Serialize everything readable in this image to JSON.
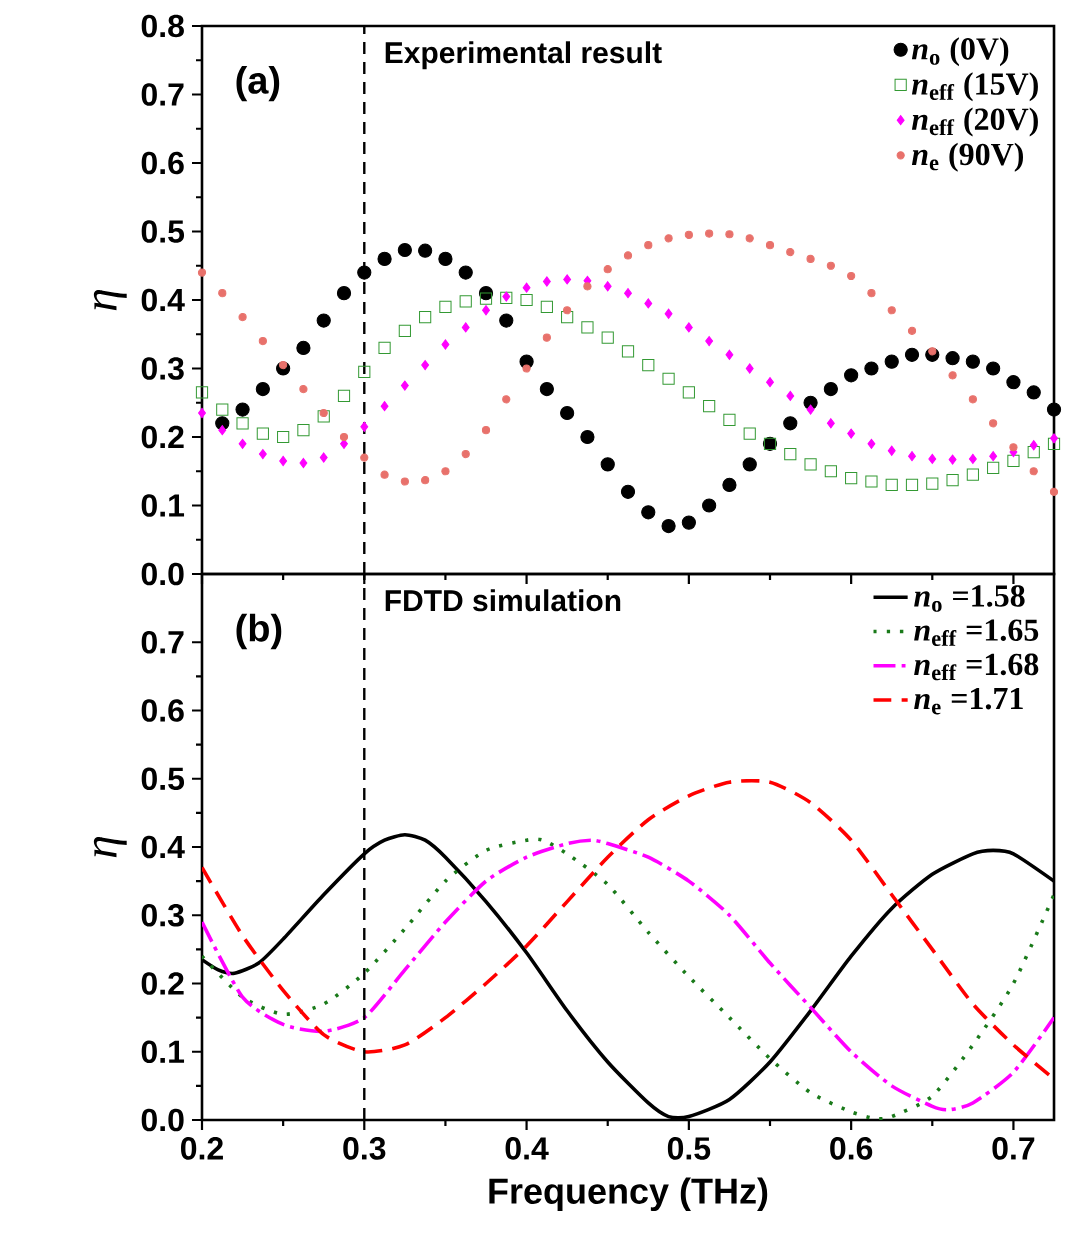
{
  "chart_data": [
    {
      "type": "scatter",
      "ylabel": "η",
      "annotations": [
        "(a)",
        "Experimental result"
      ],
      "xlim": [
        0.2,
        0.725
      ],
      "ylim": [
        0,
        0.8
      ],
      "xticks": [
        0.2,
        0.3,
        0.4,
        0.5,
        0.6,
        0.7
      ],
      "yticks": [
        {
          "value": 0,
          "label": "0.0"
        },
        0.1,
        0.2,
        0.3,
        0.4,
        0.5,
        0.6,
        0.7,
        0.8
      ],
      "tick_labels": "y",
      "legend": "top right",
      "ref_lines": [
        {
          "axis": "x",
          "value": 0.3,
          "color": "#000000",
          "line_style": "dashed"
        }
      ],
      "series": [
        {
          "name": "*n*$_{o}$ (0V)",
          "color": "#000000",
          "marker": "circle",
          "x": [
            0.2125,
            0.225,
            0.2375,
            0.25,
            0.2625,
            0.275,
            0.2875,
            0.3,
            0.3125,
            0.325,
            0.3375,
            0.35,
            0.3625,
            0.375,
            0.3875,
            0.4,
            0.4125,
            0.425,
            0.4375,
            0.45,
            0.4625,
            0.475,
            0.4875,
            0.5,
            0.5125,
            0.525,
            0.5375,
            0.55,
            0.5625,
            0.575,
            0.5875,
            0.6,
            0.6125,
            0.625,
            0.6375,
            0.65,
            0.6625,
            0.675,
            0.6875,
            0.7,
            0.7125,
            0.725
          ],
          "values": [
            0.22,
            0.24,
            0.27,
            0.3,
            0.33,
            0.37,
            0.41,
            0.44,
            0.46,
            0.473,
            0.472,
            0.46,
            0.44,
            0.41,
            0.37,
            0.31,
            0.27,
            0.235,
            0.2,
            0.16,
            0.12,
            0.09,
            0.07,
            0.075,
            0.1,
            0.13,
            0.16,
            0.19,
            0.22,
            0.25,
            0.27,
            0.29,
            0.3,
            0.31,
            0.32,
            0.32,
            0.315,
            0.31,
            0.3,
            0.28,
            0.265,
            0.24
          ]
        },
        {
          "name": "*n*$_{eff}$ (15V)",
          "color": "#339933",
          "marker": "square",
          "x": [
            0.2,
            0.2125,
            0.225,
            0.2375,
            0.25,
            0.2625,
            0.275,
            0.2875,
            0.3,
            0.3125,
            0.325,
            0.3375,
            0.35,
            0.3625,
            0.375,
            0.3875,
            0.4,
            0.4125,
            0.425,
            0.4375,
            0.45,
            0.4625,
            0.475,
            0.4875,
            0.5,
            0.5125,
            0.525,
            0.5375,
            0.55,
            0.5625,
            0.575,
            0.5875,
            0.6,
            0.6125,
            0.625,
            0.6375,
            0.65,
            0.6625,
            0.675,
            0.6875,
            0.7,
            0.7125,
            0.725
          ],
          "values": [
            0.265,
            0.24,
            0.22,
            0.205,
            0.2,
            0.21,
            0.23,
            0.26,
            0.295,
            0.33,
            0.355,
            0.375,
            0.39,
            0.398,
            0.402,
            0.403,
            0.4,
            0.39,
            0.375,
            0.36,
            0.345,
            0.325,
            0.305,
            0.285,
            0.265,
            0.245,
            0.225,
            0.205,
            0.19,
            0.175,
            0.16,
            0.15,
            0.14,
            0.135,
            0.13,
            0.13,
            0.132,
            0.137,
            0.145,
            0.155,
            0.165,
            0.178,
            0.19
          ]
        },
        {
          "name": "*n*$_{eff}$ (20V)",
          "color": "#ff00ff",
          "marker": "diamond",
          "x": [
            0.2,
            0.2125,
            0.225,
            0.2375,
            0.25,
            0.2625,
            0.275,
            0.2875,
            0.3,
            0.3125,
            0.325,
            0.3375,
            0.35,
            0.3625,
            0.375,
            0.3875,
            0.4,
            0.4125,
            0.425,
            0.4375,
            0.45,
            0.4625,
            0.475,
            0.4875,
            0.5,
            0.5125,
            0.525,
            0.5375,
            0.55,
            0.5625,
            0.575,
            0.5875,
            0.6,
            0.6125,
            0.625,
            0.6375,
            0.65,
            0.6625,
            0.675,
            0.6875,
            0.7,
            0.7125,
            0.725
          ],
          "values": [
            0.235,
            0.21,
            0.19,
            0.175,
            0.165,
            0.162,
            0.17,
            0.19,
            0.215,
            0.245,
            0.275,
            0.305,
            0.335,
            0.36,
            0.385,
            0.405,
            0.418,
            0.427,
            0.43,
            0.428,
            0.42,
            0.41,
            0.395,
            0.38,
            0.36,
            0.34,
            0.32,
            0.3,
            0.28,
            0.26,
            0.24,
            0.22,
            0.205,
            0.19,
            0.18,
            0.172,
            0.168,
            0.167,
            0.168,
            0.172,
            0.178,
            0.188,
            0.198
          ]
        },
        {
          "name": "*n*$_{e}$ (90V)",
          "color": "#e8716b",
          "marker": "circle",
          "x": [
            0.2,
            0.2125,
            0.225,
            0.2375,
            0.25,
            0.2625,
            0.275,
            0.2875,
            0.3,
            0.3125,
            0.325,
            0.3375,
            0.35,
            0.3625,
            0.375,
            0.3875,
            0.4,
            0.4125,
            0.425,
            0.4375,
            0.45,
            0.4625,
            0.475,
            0.4875,
            0.5,
            0.5125,
            0.525,
            0.5375,
            0.55,
            0.5625,
            0.575,
            0.5875,
            0.6,
            0.6125,
            0.625,
            0.6375,
            0.65,
            0.6625,
            0.675,
            0.6875,
            0.7,
            0.7125,
            0.725
          ],
          "values": [
            0.44,
            0.41,
            0.375,
            0.34,
            0.305,
            0.27,
            0.235,
            0.2,
            0.17,
            0.145,
            0.135,
            0.137,
            0.15,
            0.175,
            0.21,
            0.255,
            0.3,
            0.345,
            0.385,
            0.42,
            0.445,
            0.465,
            0.48,
            0.49,
            0.495,
            0.497,
            0.496,
            0.49,
            0.48,
            0.47,
            0.46,
            0.45,
            0.435,
            0.41,
            0.385,
            0.355,
            0.325,
            0.29,
            0.255,
            0.22,
            0.185,
            0.15,
            0.12
          ]
        }
      ]
    },
    {
      "type": "line",
      "xlabel": "Frequency (THz)",
      "ylabel": "η",
      "annotations": [
        "(b)",
        "FDTD simulation"
      ],
      "xlim": [
        0.2,
        0.725
      ],
      "ylim": [
        0,
        0.8
      ],
      "xticks": [
        0.2,
        0.3,
        0.4,
        0.5,
        0.6,
        0.7
      ],
      "yticks": [
        {
          "value": 0,
          "label": "0.0"
        },
        0.1,
        0.2,
        0.3,
        0.4,
        0.5,
        0.6,
        0.7
      ],
      "legend": "top right",
      "ref_lines": [
        {
          "axis": "x",
          "value": 0.3,
          "color": "#000000",
          "line_style": "dashed"
        }
      ],
      "series": [
        {
          "name": "*n*$_{o}$ =1.58",
          "color": "#000000",
          "line_style": "solid",
          "x": [
            0.2,
            0.21,
            0.22,
            0.235,
            0.25,
            0.275,
            0.3,
            0.3125,
            0.325,
            0.3375,
            0.35,
            0.375,
            0.4,
            0.425,
            0.45,
            0.475,
            0.4875,
            0.5,
            0.525,
            0.55,
            0.575,
            0.6,
            0.625,
            0.65,
            0.675,
            0.6875,
            0.7,
            0.725
          ],
          "values": [
            0.235,
            0.22,
            0.215,
            0.23,
            0.265,
            0.33,
            0.39,
            0.41,
            0.418,
            0.41,
            0.385,
            0.32,
            0.245,
            0.16,
            0.085,
            0.025,
            0.005,
            0.005,
            0.03,
            0.085,
            0.16,
            0.24,
            0.31,
            0.36,
            0.39,
            0.395,
            0.39,
            0.35
          ]
        },
        {
          "name": "*n*$_{eff}$ =1.65",
          "color": "#1a7a1a",
          "line_style": "dotted",
          "x": [
            0.2,
            0.225,
            0.25,
            0.275,
            0.3,
            0.325,
            0.35,
            0.375,
            0.4,
            0.41,
            0.425,
            0.45,
            0.475,
            0.5,
            0.525,
            0.55,
            0.575,
            0.6,
            0.615,
            0.625,
            0.65,
            0.675,
            0.7,
            0.725
          ],
          "values": [
            0.24,
            0.18,
            0.155,
            0.17,
            0.215,
            0.28,
            0.35,
            0.395,
            0.41,
            0.41,
            0.39,
            0.345,
            0.275,
            0.21,
            0.15,
            0.09,
            0.04,
            0.012,
            0.002,
            0.005,
            0.035,
            0.11,
            0.2,
            0.33
          ]
        },
        {
          "name": "*n*$_{eff}$ =1.68",
          "color": "#ff00ff",
          "line_style": "dashdot",
          "x": [
            0.2,
            0.225,
            0.25,
            0.275,
            0.3,
            0.325,
            0.35,
            0.375,
            0.4,
            0.425,
            0.44,
            0.45,
            0.475,
            0.5,
            0.525,
            0.55,
            0.575,
            0.6,
            0.625,
            0.65,
            0.66,
            0.675,
            0.7,
            0.725
          ],
          "values": [
            0.29,
            0.18,
            0.14,
            0.13,
            0.15,
            0.22,
            0.29,
            0.35,
            0.385,
            0.405,
            0.41,
            0.405,
            0.385,
            0.35,
            0.3,
            0.23,
            0.165,
            0.1,
            0.05,
            0.02,
            0.015,
            0.025,
            0.07,
            0.15
          ]
        },
        {
          "name": "*n*$_{e}$ =1.71",
          "color": "#ff0000",
          "line_style": "dashed",
          "x": [
            0.2,
            0.225,
            0.25,
            0.275,
            0.3,
            0.325,
            0.35,
            0.375,
            0.4,
            0.425,
            0.45,
            0.475,
            0.5,
            0.525,
            0.55,
            0.575,
            0.6,
            0.625,
            0.65,
            0.675,
            0.7,
            0.725
          ],
          "values": [
            0.37,
            0.27,
            0.19,
            0.125,
            0.1,
            0.11,
            0.15,
            0.2,
            0.255,
            0.32,
            0.385,
            0.44,
            0.475,
            0.495,
            0.495,
            0.465,
            0.41,
            0.33,
            0.25,
            0.17,
            0.11,
            0.06
          ]
        }
      ]
    }
  ]
}
